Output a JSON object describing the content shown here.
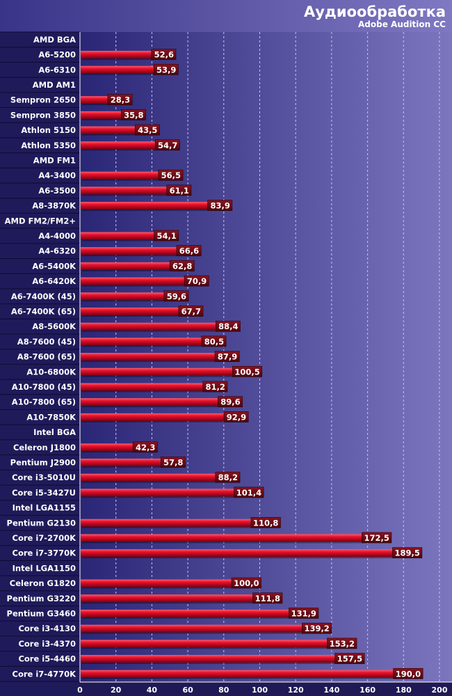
{
  "chart_data": {
    "type": "bar",
    "orientation": "horizontal",
    "title": "Аудиообработка",
    "subtitle": "Adobe Audition CC",
    "xlim": [
      0,
      200
    ],
    "xticks": [
      0,
      20,
      40,
      60,
      80,
      100,
      120,
      140,
      160,
      180,
      200
    ],
    "grid": true,
    "colors": {
      "bar": "#e0102a",
      "bar_dark": "#6a0010",
      "label_bg": "#6a0a14",
      "plot_left": "#2c2878",
      "plot_right": "#7a74bd",
      "category_panel": "#201c5c"
    },
    "categories": [
      {
        "label": "AMD BGA",
        "value": null
      },
      {
        "label": "A6-5200",
        "value": 52.6,
        "display": "52,6"
      },
      {
        "label": "A6-6310",
        "value": 53.9,
        "display": "53,9"
      },
      {
        "label": "AMD AM1",
        "value": null
      },
      {
        "label": "Sempron 2650",
        "value": 28.3,
        "display": "28,3"
      },
      {
        "label": "Sempron 3850",
        "value": 35.8,
        "display": "35,8"
      },
      {
        "label": "Athlon 5150",
        "value": 43.5,
        "display": "43,5"
      },
      {
        "label": "Athlon 5350",
        "value": 54.7,
        "display": "54,7"
      },
      {
        "label": "AMD FM1",
        "value": null
      },
      {
        "label": "A4-3400",
        "value": 56.5,
        "display": "56,5"
      },
      {
        "label": "A6-3500",
        "value": 61.1,
        "display": "61,1"
      },
      {
        "label": "A8-3870K",
        "value": 83.9,
        "display": "83,9"
      },
      {
        "label": "AMD FM2/FM2+",
        "value": null
      },
      {
        "label": "A4-4000",
        "value": 54.1,
        "display": "54,1"
      },
      {
        "label": "A4-6320",
        "value": 66.6,
        "display": "66,6"
      },
      {
        "label": "A6-5400K",
        "value": 62.8,
        "display": "62,8"
      },
      {
        "label": "A6-6420K",
        "value": 70.9,
        "display": "70,9"
      },
      {
        "label": "A6-7400K (45)",
        "value": 59.6,
        "display": "59,6"
      },
      {
        "label": "A6-7400K (65)",
        "value": 67.7,
        "display": "67,7"
      },
      {
        "label": "A8-5600K",
        "value": 88.4,
        "display": "88,4"
      },
      {
        "label": "A8-7600 (45)",
        "value": 80.5,
        "display": "80,5"
      },
      {
        "label": "A8-7600 (65)",
        "value": 87.9,
        "display": "87,9"
      },
      {
        "label": "A10-6800K",
        "value": 100.5,
        "display": "100,5"
      },
      {
        "label": "A10-7800 (45)",
        "value": 81.2,
        "display": "81,2"
      },
      {
        "label": "A10-7800 (65)",
        "value": 89.6,
        "display": "89,6"
      },
      {
        "label": "A10-7850K",
        "value": 92.9,
        "display": "92,9"
      },
      {
        "label": "Intel BGA",
        "value": null
      },
      {
        "label": "Celeron J1800",
        "value": 42.3,
        "display": "42,3"
      },
      {
        "label": "Pentium J2900",
        "value": 57.8,
        "display": "57,8"
      },
      {
        "label": "Core i3-5010U",
        "value": 88.2,
        "display": "88,2"
      },
      {
        "label": "Core i5-3427U",
        "value": 101.4,
        "display": "101,4"
      },
      {
        "label": "Intel LGA1155",
        "value": null
      },
      {
        "label": "Pentium G2130",
        "value": 110.8,
        "display": "110,8"
      },
      {
        "label": "Core i7-2700K",
        "value": 172.5,
        "display": "172,5"
      },
      {
        "label": "Core i7-3770K",
        "value": 189.5,
        "display": "189,5"
      },
      {
        "label": "Intel LGA1150",
        "value": null
      },
      {
        "label": "Celeron G1820",
        "value": 100.0,
        "display": "100,0"
      },
      {
        "label": "Pentium G3220",
        "value": 111.8,
        "display": "111,8"
      },
      {
        "label": "Pentium G3460",
        "value": 131.9,
        "display": "131,9"
      },
      {
        "label": "Core i3-4130",
        "value": 139.2,
        "display": "139,2"
      },
      {
        "label": "Core i3-4370",
        "value": 153.2,
        "display": "153,2"
      },
      {
        "label": "Core i5-4460",
        "value": 157.5,
        "display": "157,5"
      },
      {
        "label": "Core i7-4770K",
        "value": 190.0,
        "display": "190,0"
      }
    ]
  }
}
